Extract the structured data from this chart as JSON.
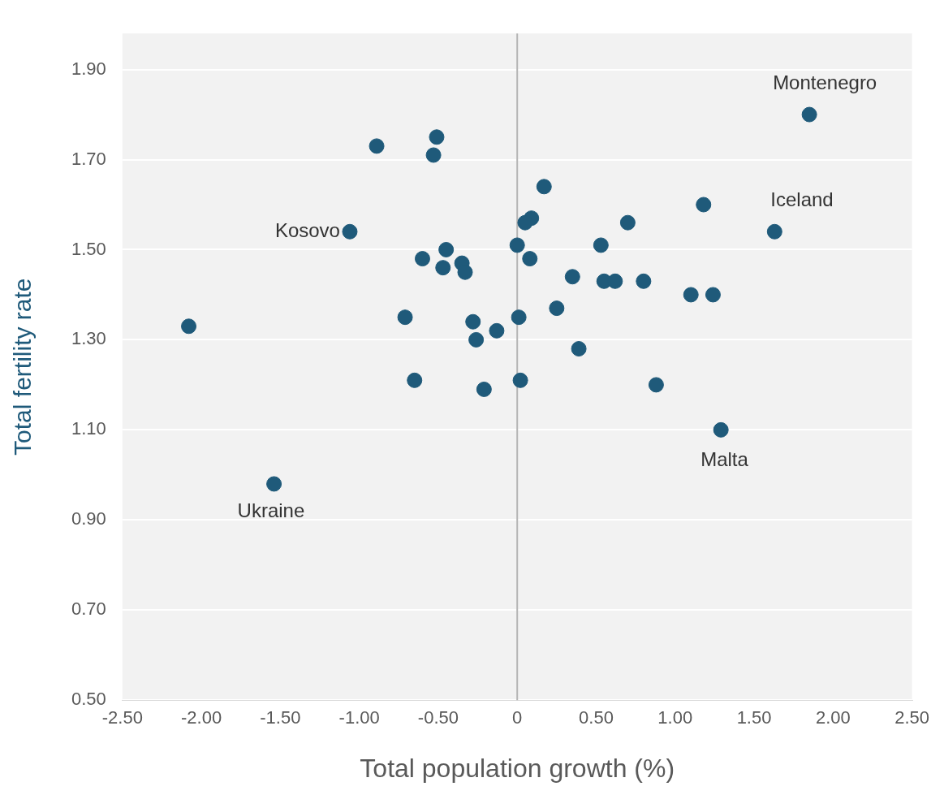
{
  "chart_data": {
    "type": "scatter",
    "xlabel": "Total population growth (%)",
    "ylabel": "Total fertility rate",
    "x": [
      1.85,
      1.63,
      1.29,
      -1.54,
      -1.06,
      -2.08,
      -0.89,
      -0.51,
      -0.53,
      0.17,
      1.18,
      0.7,
      0.09,
      0.05,
      0.53,
      0.0,
      0.08,
      -0.45,
      -0.6,
      -0.47,
      -0.35,
      -0.33,
      0.35,
      0.55,
      0.62,
      0.8,
      1.1,
      1.24,
      0.25,
      -0.71,
      0.01,
      -0.28,
      -0.13,
      -0.26,
      0.39,
      -0.65,
      -0.21,
      0.02,
      0.88
    ],
    "series": [
      {
        "color": "#1f5a7a",
        "values": [
          1.8,
          1.54,
          1.1,
          0.98,
          1.54,
          1.33,
          1.73,
          1.75,
          1.71,
          1.64,
          1.6,
          1.56,
          1.57,
          1.56,
          1.51,
          1.51,
          1.48,
          1.5,
          1.48,
          1.46,
          1.47,
          1.45,
          1.44,
          1.43,
          1.43,
          1.43,
          1.4,
          1.4,
          1.37,
          1.35,
          1.35,
          1.34,
          1.32,
          1.3,
          1.28,
          1.21,
          1.19,
          1.21,
          1.2
        ]
      }
    ],
    "xlim": [
      -2.5,
      2.5
    ],
    "xticks": [
      {
        "value": -2.5,
        "label": "-2.50"
      },
      {
        "value": -2,
        "label": "-2.00"
      },
      {
        "value": -1.5,
        "label": "-1.50"
      },
      {
        "value": -1,
        "label": "-1.00"
      },
      {
        "value": -0.5,
        "label": "-0.50"
      },
      0,
      {
        "value": 0.5,
        "label": "0.50"
      },
      {
        "value": 1,
        "label": "1.00"
      },
      {
        "value": 1.5,
        "label": "1.50"
      },
      {
        "value": 2,
        "label": "2.00"
      },
      {
        "value": 2.5,
        "label": "2.50"
      }
    ],
    "ylim": [
      0.5,
      1.98
    ],
    "yticks": [
      {
        "value": 0.5,
        "label": "0.50"
      },
      {
        "value": 0.7,
        "label": "0.70"
      },
      {
        "value": 0.9,
        "label": "0.90"
      },
      {
        "value": 1.1,
        "label": "1.10"
      },
      {
        "value": 1.3,
        "label": "1.30"
      },
      {
        "value": 1.5,
        "label": "1.50"
      },
      {
        "value": 1.7,
        "label": "1.70"
      },
      {
        "value": 1.9,
        "label": "1.90"
      }
    ],
    "grid": "y",
    "marker": "circle",
    "legend": false,
    "ref_lines": [
      {
        "axis": "x",
        "value": 0,
        "color": "#b4b4b4"
      }
    ],
    "annotations": [
      {
        "text": "Montenegro",
        "x": 1.85,
        "y": 1.8
      },
      {
        "text": "Iceland",
        "x": 1.63,
        "y": 1.54
      },
      {
        "text": "Malta",
        "x": 1.29,
        "y": 1.1
      },
      {
        "text": "Ukraine",
        "x": -1.54,
        "y": 0.98
      },
      {
        "text": "Kosovo",
        "x": -1.06,
        "y": 1.54
      }
    ]
  }
}
